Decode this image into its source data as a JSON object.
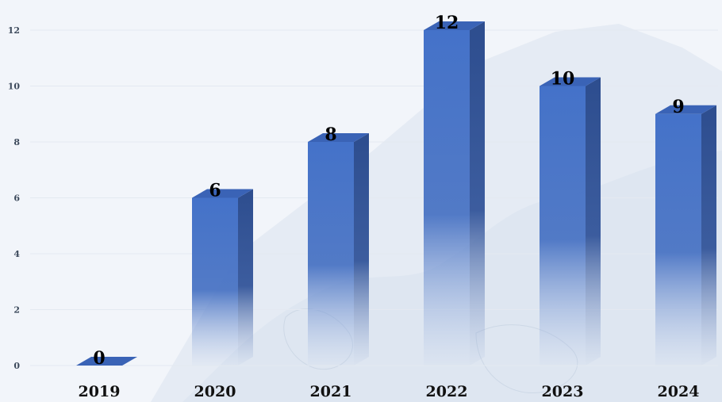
{
  "chart_data": {
    "type": "bar",
    "title": "",
    "xlabel": "",
    "ylabel": "",
    "categories": [
      "2019",
      "2020",
      "2021",
      "2022",
      "2023",
      "2024"
    ],
    "values": [
      0,
      6,
      8,
      12,
      10,
      9
    ],
    "yticks": [
      0,
      2,
      4,
      6,
      8,
      10,
      12
    ],
    "ylim": [
      0,
      12
    ],
    "grid": true,
    "legend": "none",
    "bar_style": "3d-gradient",
    "colors": {
      "bar_front": "#4470c8",
      "bar_side": "#2e4f91",
      "bar_top": "#3a63b6",
      "background": "#f2f5fa",
      "map_shape": "#e1e8f2"
    }
  }
}
